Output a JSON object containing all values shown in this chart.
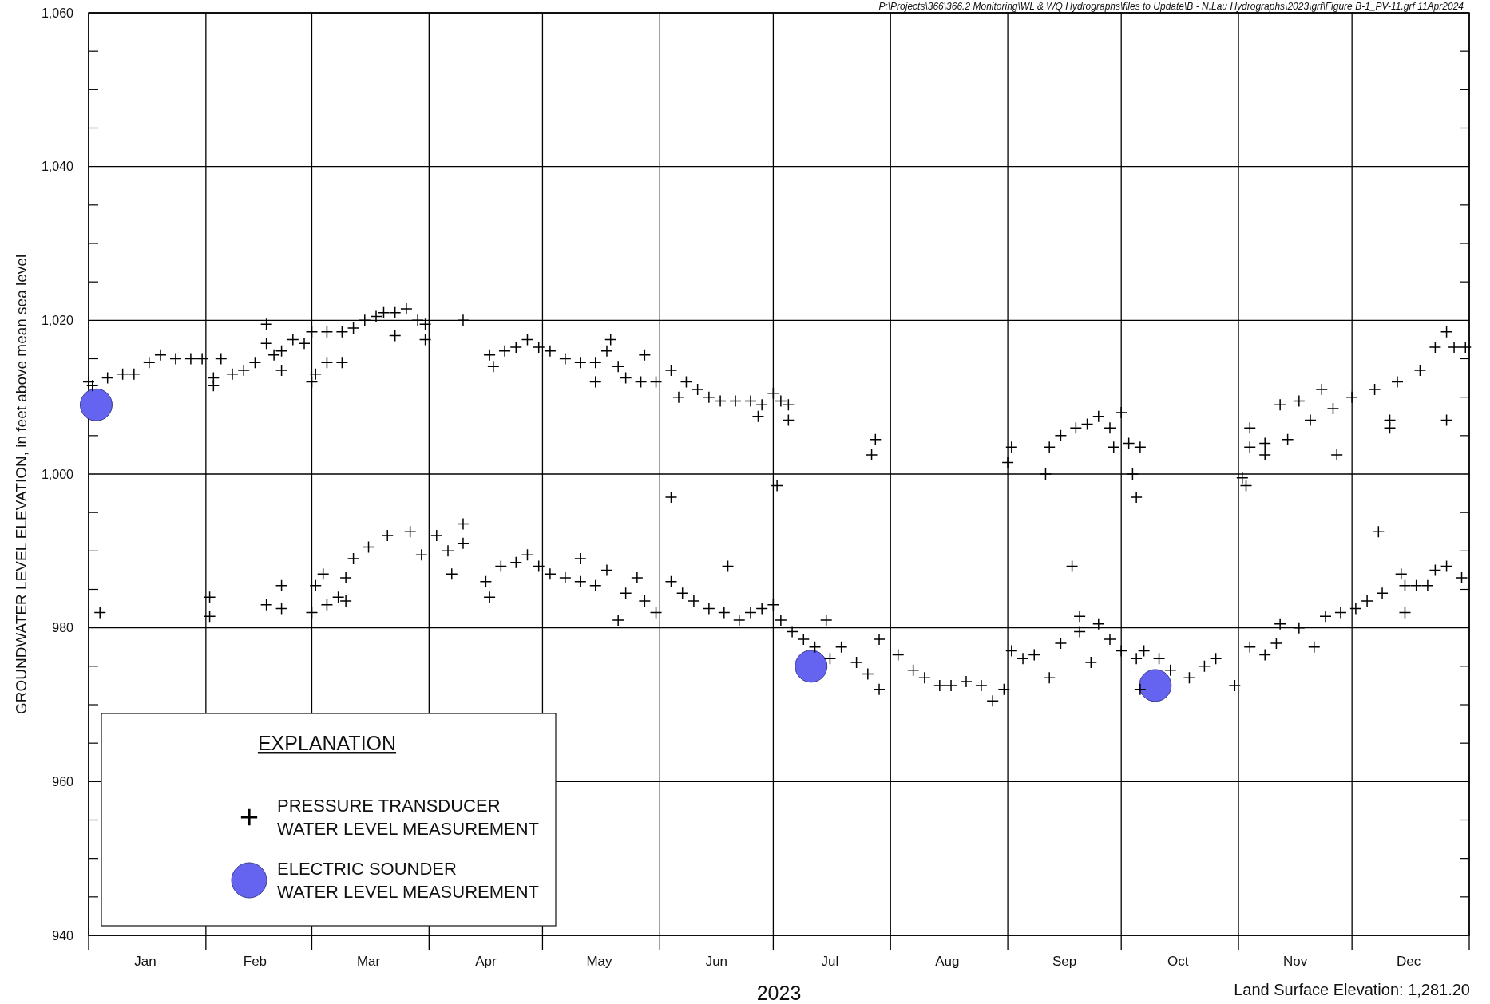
{
  "chart_data": {
    "type": "scatter",
    "xlabel": "2023",
    "ylabel": "GROUNDWATER LEVEL ELEVATION, in feet above mean sea level",
    "annotations": [
      "P:\\Projects\\366\\366.2 Monitoring\\WL & WQ Hydrographs\\files to Update\\B - N.Lau Hydrographs\\2023\\grf\\Figure B-1_PV-11.grf 11Apr2024",
      "Land Surface Elevation: 1,281.20"
    ],
    "legend_title": "EXPLANATION",
    "legend": "bottom left",
    "grid": true,
    "xlim": [
      "2023-01-01",
      "2024-01-01"
    ],
    "xticks": [
      {
        "value": "2023-01-01",
        "label": null
      },
      {
        "value": "2023-01-16",
        "label": "Jan"
      },
      {
        "value": "2023-02-01",
        "label": null
      },
      {
        "value": "2023-02-14",
        "label": "Feb"
      },
      {
        "value": "2023-03-01",
        "label": null
      },
      {
        "value": "2023-03-16",
        "label": "Mar"
      },
      {
        "value": "2023-04-01",
        "label": null
      },
      {
        "value": "2023-04-16",
        "label": "Apr"
      },
      {
        "value": "2023-05-01",
        "label": null
      },
      {
        "value": "2023-05-16",
        "label": "May"
      },
      {
        "value": "2023-06-01",
        "label": null
      },
      {
        "value": "2023-06-16",
        "label": "Jun"
      },
      {
        "value": "2023-07-01",
        "label": null
      },
      {
        "value": "2023-07-16",
        "label": "Jul"
      },
      {
        "value": "2023-08-01",
        "label": null
      },
      {
        "value": "2023-08-16",
        "label": "Aug"
      },
      {
        "value": "2023-09-01",
        "label": null
      },
      {
        "value": "2023-09-16",
        "label": "Sep"
      },
      {
        "value": "2023-10-01",
        "label": null
      },
      {
        "value": "2023-10-16",
        "label": "Oct"
      },
      {
        "value": "2023-11-01",
        "label": null
      },
      {
        "value": "2023-11-16",
        "label": "Nov"
      },
      {
        "value": "2023-12-01",
        "label": null
      },
      {
        "value": "2023-12-16",
        "label": "Dec"
      },
      {
        "value": "2024-01-01",
        "label": null
      }
    ],
    "ylim": [
      940,
      1060
    ],
    "yticks": [
      940,
      {
        "value": 945,
        "label": null
      },
      {
        "value": 950,
        "label": null
      },
      {
        "value": 955,
        "label": null
      },
      960,
      {
        "value": 965,
        "label": null
      },
      {
        "value": 970,
        "label": null
      },
      {
        "value": 975,
        "label": null
      },
      980,
      {
        "value": 985,
        "label": null
      },
      {
        "value": 990,
        "label": null
      },
      {
        "value": 995,
        "label": null
      },
      {
        "value": 1000,
        "label": "1,000"
      },
      {
        "value": 1005,
        "label": null
      },
      {
        "value": 1010,
        "label": null
      },
      {
        "value": 1015,
        "label": null
      },
      {
        "value": 1020,
        "label": "1,020"
      },
      {
        "value": 1025,
        "label": null
      },
      {
        "value": 1030,
        "label": null
      },
      {
        "value": 1035,
        "label": null
      },
      {
        "value": 1040,
        "label": "1,040"
      },
      {
        "value": 1045,
        "label": null
      },
      {
        "value": 1050,
        "label": null
      },
      {
        "value": 1055,
        "label": null
      },
      {
        "value": 1060,
        "label": "1,060"
      }
    ],
    "series": [
      {
        "name": "PRESSURE TRANSDUCER\nWATER LEVEL MEASUREMENT",
        "marker": "cross",
        "color": "#000000",
        "x": [
          "2023-01-01",
          "2023-01-02",
          "2023-01-06",
          "2023-01-10",
          "2023-01-13",
          "2023-01-17",
          "2023-01-20",
          "2023-01-24",
          "2023-01-28",
          "2023-01-31",
          "2023-02-03",
          "2023-02-03",
          "2023-02-05",
          "2023-02-08",
          "2023-02-11",
          "2023-02-14",
          "2023-02-17",
          "2023-02-17",
          "2023-02-19",
          "2023-02-21",
          "2023-02-21",
          "2023-02-24",
          "2023-02-27",
          "2023-03-01",
          "2023-03-01",
          "2023-03-02",
          "2023-03-05",
          "2023-03-05",
          "2023-03-09",
          "2023-03-09",
          "2023-03-12",
          "2023-03-15",
          "2023-03-18",
          "2023-03-20",
          "2023-03-23",
          "2023-03-23",
          "2023-03-26",
          "2023-03-29",
          "2023-03-31",
          "2023-03-31",
          "2023-04-10",
          "2023-04-17",
          "2023-04-18",
          "2023-04-21",
          "2023-04-24",
          "2023-04-27",
          "2023-04-30",
          "2023-05-03",
          "2023-05-07",
          "2023-05-11",
          "2023-05-15",
          "2023-05-15",
          "2023-05-18",
          "2023-05-19",
          "2023-05-21",
          "2023-05-23",
          "2023-05-27",
          "2023-05-28",
          "2023-05-31",
          "2023-06-04",
          "2023-06-06",
          "2023-06-08",
          "2023-06-11",
          "2023-06-14",
          "2023-06-17",
          "2023-06-21",
          "2023-06-25",
          "2023-06-27",
          "2023-06-28",
          "2023-07-01",
          "2023-07-03",
          "2023-07-05",
          "2023-07-05",
          "2023-07-27",
          "2023-07-28",
          "2023-09-01",
          "2023-09-02",
          "2023-09-11",
          "2023-09-12",
          "2023-09-15",
          "2023-09-19",
          "2023-09-22",
          "2023-09-25",
          "2023-09-28",
          "2023-09-29",
          "2023-10-01",
          "2023-10-03",
          "2023-10-04",
          "2023-10-05",
          "2023-10-06",
          "2023-11-02",
          "2023-11-03",
          "2023-11-04",
          "2023-11-04",
          "2023-11-08",
          "2023-11-08",
          "2023-11-12",
          "2023-11-14",
          "2023-11-17",
          "2023-11-20",
          "2023-11-23",
          "2023-11-26",
          "2023-11-27",
          "2023-12-01",
          "2023-12-07",
          "2023-12-11",
          "2023-12-11",
          "2023-12-13",
          "2023-12-19",
          "2023-12-23",
          "2023-12-26",
          "2023-12-26",
          "2023-12-28",
          "2023-12-31",
          "2023-01-04",
          "2023-02-02",
          "2023-02-02",
          "2023-02-17",
          "2023-02-21",
          "2023-02-21",
          "2023-03-01",
          "2023-03-02",
          "2023-03-04",
          "2023-03-05",
          "2023-03-08",
          "2023-03-10",
          "2023-03-10",
          "2023-03-12",
          "2023-03-16",
          "2023-03-21",
          "2023-03-27",
          "2023-03-30",
          "2023-04-03",
          "2023-04-06",
          "2023-04-07",
          "2023-04-10",
          "2023-04-10",
          "2023-04-16",
          "2023-04-17",
          "2023-04-20",
          "2023-04-24",
          "2023-04-27",
          "2023-04-30",
          "2023-05-03",
          "2023-05-07",
          "2023-05-11",
          "2023-05-11",
          "2023-05-15",
          "2023-05-18",
          "2023-05-21",
          "2023-05-23",
          "2023-05-26",
          "2023-05-28",
          "2023-05-31",
          "2023-06-04",
          "2023-06-04",
          "2023-06-07",
          "2023-06-10",
          "2023-06-14",
          "2023-06-18",
          "2023-06-19",
          "2023-06-22",
          "2023-06-25",
          "2023-06-28",
          "2023-07-01",
          "2023-07-02",
          "2023-07-03",
          "2023-07-06",
          "2023-07-09",
          "2023-07-12",
          "2023-07-15",
          "2023-07-16",
          "2023-07-19",
          "2023-07-23",
          "2023-07-26",
          "2023-07-29",
          "2023-07-29",
          "2023-08-03",
          "2023-08-07",
          "2023-08-10",
          "2023-08-14",
          "2023-08-17",
          "2023-08-21",
          "2023-08-25",
          "2023-08-28",
          "2023-08-31",
          "2023-09-02",
          "2023-09-05",
          "2023-09-08",
          "2023-09-12",
          "2023-09-15",
          "2023-09-18",
          "2023-09-20",
          "2023-09-20",
          "2023-09-23",
          "2023-09-25",
          "2023-09-28",
          "2023-10-01",
          "2023-10-05",
          "2023-10-06",
          "2023-10-07",
          "2023-10-11",
          "2023-10-14",
          "2023-10-19",
          "2023-10-23",
          "2023-10-26",
          "2023-10-31",
          "2023-11-04",
          "2023-11-08",
          "2023-11-11",
          "2023-11-12",
          "2023-11-17",
          "2023-11-21",
          "2023-11-24",
          "2023-11-28",
          "2023-12-02",
          "2023-12-05",
          "2023-12-08",
          "2023-12-09",
          "2023-12-14",
          "2023-12-15",
          "2023-12-15",
          "2023-12-18",
          "2023-12-21",
          "2023-12-23",
          "2023-12-26",
          "2023-12-30"
        ],
        "values": [
          1012,
          1011.5,
          1012.5,
          1013,
          1013,
          1014.5,
          1015.5,
          1015,
          1015,
          1015,
          1012.5,
          1011.5,
          1015,
          1013,
          1013.5,
          1014.5,
          1017,
          1019.5,
          1015.5,
          1016,
          1013.5,
          1017.5,
          1017,
          1018.5,
          1012,
          1013,
          1018.5,
          1014.5,
          1018.5,
          1014.5,
          1019,
          1020,
          1020.5,
          1021,
          1021,
          1018,
          1021.5,
          1020,
          1019.5,
          1017.5,
          1020,
          1015.5,
          1014,
          1016,
          1016.5,
          1017.5,
          1016.5,
          1016,
          1015,
          1014.5,
          1014.5,
          1012,
          1016,
          1017.5,
          1014,
          1012.5,
          1012,
          1015.5,
          1012,
          1013.5,
          1010,
          1012,
          1011,
          1010,
          1009.5,
          1009.5,
          1009.5,
          1007.5,
          1009,
          1010.5,
          1009.5,
          1009,
          1007,
          1002.5,
          1004.5,
          1001.5,
          1003.5,
          1000,
          1003.5,
          1005,
          1006,
          1006.5,
          1007.5,
          1006,
          1003.5,
          1008,
          1004,
          1000,
          997,
          1003.5,
          999.5,
          998.5,
          1003.5,
          1006,
          1004,
          1002.5,
          1009,
          1004.5,
          1009.5,
          1007,
          1011,
          1008.5,
          1002.5,
          1010,
          1011,
          1006,
          1007,
          1012,
          1013.5,
          1016.5,
          1018.5,
          1007,
          1016.5,
          1016.5,
          982,
          981.5,
          984,
          983,
          982.5,
          985.5,
          982,
          985.5,
          987,
          983,
          984,
          983.5,
          986.5,
          989,
          990.5,
          992,
          992.5,
          989.5,
          992,
          990,
          987,
          991,
          993.5,
          986,
          984,
          988,
          988.5,
          989.5,
          988,
          987,
          986.5,
          986,
          989,
          985.5,
          987.5,
          981,
          984.5,
          986.5,
          983.5,
          982,
          986,
          997,
          984.5,
          983.5,
          982.5,
          982,
          988,
          981,
          982,
          982.5,
          983,
          998.5,
          981,
          979.5,
          978.5,
          977.5,
          981,
          976,
          977.5,
          975.5,
          974,
          972,
          978.5,
          976.5,
          974.5,
          973.5,
          972.5,
          972.5,
          973,
          972.5,
          970.5,
          972,
          977,
          976,
          976.5,
          973.5,
          978,
          988,
          979.5,
          981.5,
          975.5,
          980.5,
          978.5,
          977,
          976,
          972,
          977,
          976,
          974.5,
          973.5,
          975,
          976,
          972.5,
          977.5,
          976.5,
          978,
          980.5,
          980,
          977.5,
          981.5,
          982,
          982.5,
          983.5,
          992.5,
          984.5,
          987,
          985.5,
          982,
          985.5,
          985.5,
          987.5,
          988,
          986.5
        ]
      },
      {
        "name": "ELECTRIC SOUNDER\nWATER LEVEL MEASUREMENT",
        "marker": "circle",
        "color": "#6464f0",
        "x": [
          "2023-01-03",
          "2023-07-11",
          "2023-10-10"
        ],
        "values": [
          1009,
          975,
          972.5
        ]
      }
    ]
  }
}
